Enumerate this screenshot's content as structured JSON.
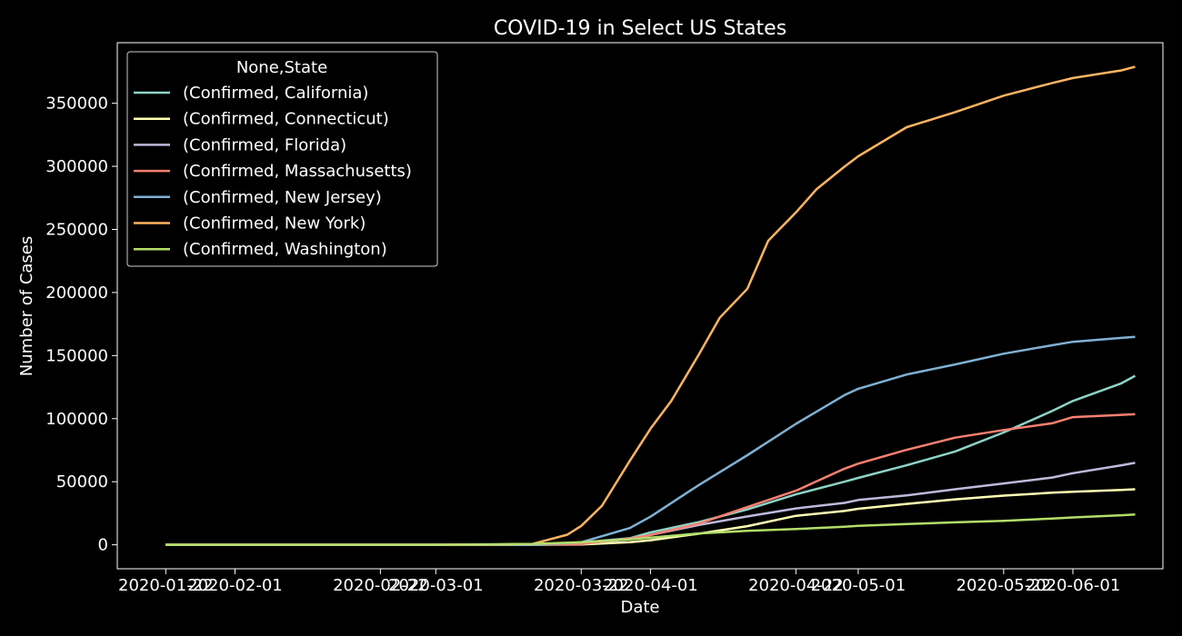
{
  "chart_data": {
    "type": "line",
    "title": "COVID-19 in Select US States",
    "xlabel": "Date",
    "ylabel": "Number of Cases",
    "background": "#000000",
    "axis_color": "#ffffff",
    "text_color": "#ffffff",
    "grid": false,
    "legend_position": "top-left",
    "legend_title": "None,State",
    "xlim": [
      "2020-01-15",
      "2020-06-14"
    ],
    "ylim": [
      -19000,
      398000
    ],
    "xticks": [
      {
        "date": "2020-01-22",
        "label": "2020-01-22"
      },
      {
        "date": "2020-02-01",
        "label": "2020-02-01"
      },
      {
        "date": "2020-02-22",
        "label": "2020-02-22"
      },
      {
        "date": "2020-03-01",
        "label": "2020-03-01"
      },
      {
        "date": "2020-03-22",
        "label": "2020-03-22"
      },
      {
        "date": "2020-04-01",
        "label": "2020-04-01"
      },
      {
        "date": "2020-04-22",
        "label": "2020-04-22"
      },
      {
        "date": "2020-05-01",
        "label": "2020-05-01"
      },
      {
        "date": "2020-05-22",
        "label": "2020-05-22"
      },
      {
        "date": "2020-06-01",
        "label": "2020-06-01"
      }
    ],
    "yticks": [
      {
        "value": 0,
        "label": "0"
      },
      {
        "value": 50000,
        "label": "50000"
      },
      {
        "value": 100000,
        "label": "100000"
      },
      {
        "value": 150000,
        "label": "150000"
      },
      {
        "value": 200000,
        "label": "200000"
      },
      {
        "value": 250000,
        "label": "250000"
      },
      {
        "value": 300000,
        "label": "300000"
      },
      {
        "value": 350000,
        "label": "350000"
      }
    ],
    "series": [
      {
        "name": "(Confirmed, California)",
        "color": "#8dd3c7",
        "x": [
          "2020-01-22",
          "2020-03-01",
          "2020-03-15",
          "2020-03-22",
          "2020-03-29",
          "2020-04-01",
          "2020-04-08",
          "2020-04-15",
          "2020-04-22",
          "2020-04-29",
          "2020-05-01",
          "2020-05-08",
          "2020-05-15",
          "2020-05-22",
          "2020-05-29",
          "2020-06-01",
          "2020-06-08",
          "2020-06-10"
        ],
        "y": [
          0,
          0,
          300,
          1800,
          5200,
          9800,
          18000,
          28000,
          40000,
          50000,
          53000,
          63000,
          74000,
          89000,
          106000,
          114000,
          128000,
          134000
        ]
      },
      {
        "name": "(Confirmed, Connecticut)",
        "color": "#ffffb3",
        "x": [
          "2020-01-22",
          "2020-03-01",
          "2020-03-15",
          "2020-03-22",
          "2020-03-29",
          "2020-04-01",
          "2020-04-08",
          "2020-04-15",
          "2020-04-22",
          "2020-04-29",
          "2020-05-01",
          "2020-05-08",
          "2020-05-15",
          "2020-05-22",
          "2020-05-29",
          "2020-06-01",
          "2020-06-08",
          "2020-06-10"
        ],
        "y": [
          0,
          0,
          30,
          300,
          2000,
          3600,
          8800,
          14800,
          23000,
          26800,
          28500,
          32400,
          36000,
          39000,
          41300,
          42000,
          43500,
          44000
        ]
      },
      {
        "name": "(Confirmed, Florida)",
        "color": "#bebada",
        "x": [
          "2020-01-22",
          "2020-03-01",
          "2020-03-15",
          "2020-03-22",
          "2020-03-29",
          "2020-04-01",
          "2020-04-08",
          "2020-04-15",
          "2020-04-22",
          "2020-04-29",
          "2020-05-01",
          "2020-05-08",
          "2020-05-15",
          "2020-05-22",
          "2020-05-29",
          "2020-06-01",
          "2020-06-08",
          "2020-06-10"
        ],
        "y": [
          0,
          0,
          100,
          1000,
          4400,
          7800,
          15700,
          22500,
          28800,
          33200,
          35500,
          39200,
          44000,
          48600,
          53300,
          56800,
          63000,
          65000
        ]
      },
      {
        "name": "(Confirmed, Massachusetts)",
        "color": "#fb8072",
        "x": [
          "2020-01-22",
          "2020-03-01",
          "2020-03-15",
          "2020-03-22",
          "2020-03-29",
          "2020-04-01",
          "2020-04-08",
          "2020-04-15",
          "2020-04-22",
          "2020-04-29",
          "2020-05-01",
          "2020-05-08",
          "2020-05-15",
          "2020-05-22",
          "2020-05-29",
          "2020-06-01",
          "2020-06-08",
          "2020-06-10"
        ],
        "y": [
          0,
          0,
          150,
          600,
          4900,
          7700,
          16800,
          29900,
          42900,
          60300,
          64300,
          75300,
          84900,
          91000,
          96300,
          101200,
          103000,
          103500
        ]
      },
      {
        "name": "(Confirmed, New Jersey)",
        "color": "#80b1d3",
        "x": [
          "2020-01-22",
          "2020-03-01",
          "2020-03-15",
          "2020-03-22",
          "2020-03-29",
          "2020-04-01",
          "2020-04-08",
          "2020-04-15",
          "2020-04-22",
          "2020-04-29",
          "2020-05-01",
          "2020-05-08",
          "2020-05-15",
          "2020-05-22",
          "2020-05-29",
          "2020-06-01",
          "2020-06-08",
          "2020-06-10"
        ],
        "y": [
          0,
          0,
          100,
          2000,
          13300,
          22300,
          47400,
          71000,
          95900,
          118600,
          123700,
          135000,
          143000,
          151500,
          158200,
          160900,
          164000,
          164800
        ]
      },
      {
        "name": "(Confirmed, New York)",
        "color": "#fdb462",
        "x": [
          "2020-01-22",
          "2020-03-01",
          "2020-03-08",
          "2020-03-15",
          "2020-03-20",
          "2020-03-22",
          "2020-03-25",
          "2020-03-29",
          "2020-04-01",
          "2020-04-04",
          "2020-04-08",
          "2020-04-11",
          "2020-04-15",
          "2020-04-18",
          "2020-04-22",
          "2020-04-25",
          "2020-04-29",
          "2020-05-01",
          "2020-05-08",
          "2020-05-15",
          "2020-05-22",
          "2020-05-29",
          "2020-06-01",
          "2020-06-08",
          "2020-06-10"
        ],
        "y": [
          0,
          0,
          100,
          700,
          8000,
          15000,
          31000,
          66500,
          92000,
          114000,
          151000,
          180000,
          203000,
          241000,
          263500,
          282000,
          299700,
          308000,
          331000,
          343000,
          356000,
          366000,
          370000,
          376000,
          379000
        ]
      },
      {
        "name": "(Confirmed, Washington)",
        "color": "#b3de69",
        "x": [
          "2020-01-22",
          "2020-03-01",
          "2020-03-15",
          "2020-03-22",
          "2020-03-29",
          "2020-04-01",
          "2020-04-08",
          "2020-04-15",
          "2020-04-22",
          "2020-04-29",
          "2020-05-01",
          "2020-05-08",
          "2020-05-15",
          "2020-05-22",
          "2020-05-29",
          "2020-06-01",
          "2020-06-08",
          "2020-06-10"
        ],
        "y": [
          0,
          0,
          700,
          2000,
          4300,
          5600,
          9000,
          11000,
          12500,
          14300,
          15000,
          16400,
          17800,
          19000,
          20800,
          21700,
          23400,
          24000
        ]
      }
    ]
  }
}
